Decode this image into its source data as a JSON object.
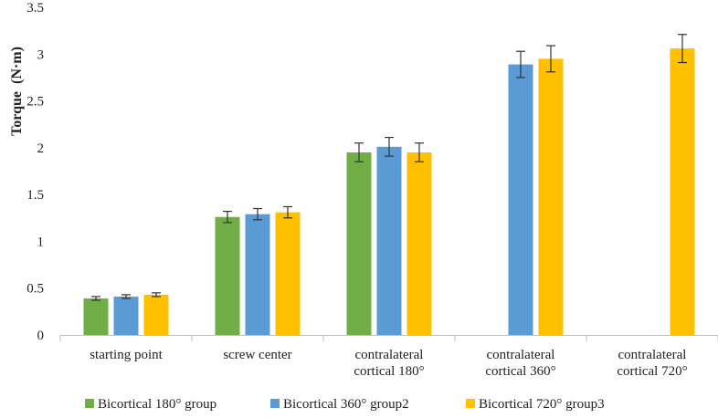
{
  "chart_data": {
    "type": "bar",
    "title": "",
    "xlabel": "",
    "ylabel": "Torque  (N·m)",
    "ylim": [
      0,
      3.5
    ],
    "yticks": [
      "0",
      "0.5",
      "1",
      "1.5",
      "2",
      "2.5",
      "3",
      "3.5"
    ],
    "ytick_values": [
      0,
      0.5,
      1,
      1.5,
      2,
      2.5,
      3,
      3.5
    ],
    "grid": false,
    "legend_position": "bottom",
    "categories": [
      [
        "starting point"
      ],
      [
        "screw center"
      ],
      [
        "contralateral",
        "cortical 180°"
      ],
      [
        "contralateral",
        "cortical 360°"
      ],
      [
        "contralateral",
        "cortical 720°"
      ]
    ],
    "series": [
      {
        "name": "Bicortical 180° group",
        "color": "#70ad47",
        "values": [
          0.39,
          1.26,
          1.95,
          null,
          null
        ],
        "errors": [
          0.02,
          0.06,
          0.1,
          null,
          null
        ]
      },
      {
        "name": "Bicortical 360° group2",
        "color": "#5b9bd5",
        "values": [
          0.41,
          1.29,
          2.01,
          2.89,
          null
        ],
        "errors": [
          0.02,
          0.06,
          0.1,
          0.14,
          null
        ]
      },
      {
        "name": "Bicortical 720° group3",
        "color": "#ffc000",
        "values": [
          0.43,
          1.31,
          1.95,
          2.95,
          3.06
        ],
        "errors": [
          0.02,
          0.06,
          0.1,
          0.14,
          0.15
        ]
      }
    ]
  }
}
